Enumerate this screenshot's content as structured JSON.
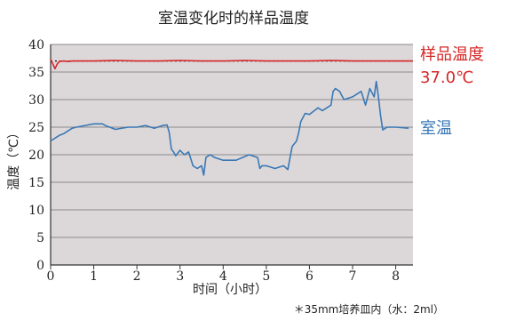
{
  "chart_data": {
    "type": "line",
    "title": "室温变化时的样品温度",
    "xlabel": "时间（小时）",
    "ylabel": "温度（℃）",
    "xlim": [
      0,
      8.4
    ],
    "ylim": [
      0,
      40
    ],
    "xticks": [
      0,
      1,
      2,
      3,
      4,
      5,
      6,
      7,
      8
    ],
    "yticks": [
      0,
      5,
      10,
      15,
      20,
      25,
      30,
      35,
      40
    ],
    "grid": true,
    "footnote": "＊35mm培养皿内（水：2ml）",
    "reference_line": {
      "y": 37.0,
      "style": "dotted"
    },
    "series": [
      {
        "name": "样品温度",
        "value_label": "37.0℃",
        "color": "#d62728",
        "x": [
          0,
          0.05,
          0.1,
          0.15,
          0.2,
          0.3,
          0.4,
          0.5,
          0.7,
          1.0,
          1.5,
          2.0,
          2.5,
          3.0,
          3.5,
          4.0,
          4.5,
          5.0,
          5.5,
          6.0,
          6.5,
          7.0,
          7.5,
          8.0,
          8.4
        ],
        "y": [
          37.3,
          36.5,
          35.6,
          36.4,
          36.9,
          37.0,
          36.9,
          37.0,
          37.0,
          37.0,
          37.1,
          37.0,
          37.0,
          37.1,
          37.0,
          37.0,
          37.1,
          37.0,
          37.0,
          37.0,
          37.1,
          37.0,
          37.0,
          37.0,
          37.0
        ]
      },
      {
        "name": "室温",
        "color": "#3a78b5",
        "x": [
          0,
          0.1,
          0.2,
          0.3,
          0.4,
          0.5,
          0.6,
          0.8,
          1.0,
          1.2,
          1.3,
          1.5,
          1.8,
          2.0,
          2.2,
          2.4,
          2.6,
          2.7,
          2.75,
          2.8,
          2.85,
          2.9,
          3.0,
          3.1,
          3.2,
          3.3,
          3.4,
          3.5,
          3.55,
          3.6,
          3.7,
          3.8,
          4.0,
          4.3,
          4.6,
          4.8,
          4.85,
          4.9,
          5.0,
          5.2,
          5.4,
          5.5,
          5.55,
          5.6,
          5.7,
          5.75,
          5.8,
          5.9,
          6.0,
          6.2,
          6.3,
          6.4,
          6.5,
          6.55,
          6.6,
          6.7,
          6.8,
          7.0,
          7.2,
          7.3,
          7.4,
          7.5,
          7.55,
          7.6,
          7.65,
          7.7,
          7.8,
          8.0,
          8.3
        ],
        "y": [
          22.5,
          23.0,
          23.5,
          23.8,
          24.3,
          24.8,
          25.0,
          25.3,
          25.6,
          25.6,
          25.2,
          24.6,
          25.0,
          25.0,
          25.3,
          24.8,
          25.3,
          25.4,
          24.0,
          21.0,
          20.5,
          19.8,
          20.8,
          20.0,
          20.5,
          18.0,
          17.5,
          18.0,
          16.3,
          19.5,
          20.0,
          19.5,
          19.0,
          19.0,
          20.0,
          19.5,
          17.5,
          18.0,
          18.0,
          17.5,
          18.0,
          17.3,
          19.5,
          21.5,
          22.5,
          24.0,
          26.0,
          27.5,
          27.3,
          28.5,
          28.0,
          28.5,
          29.0,
          31.5,
          32.0,
          31.5,
          30.0,
          30.5,
          31.5,
          29.0,
          32.0,
          30.5,
          33.3,
          30.5,
          27.0,
          24.5,
          25.0,
          25.0,
          24.8
        ]
      }
    ]
  }
}
